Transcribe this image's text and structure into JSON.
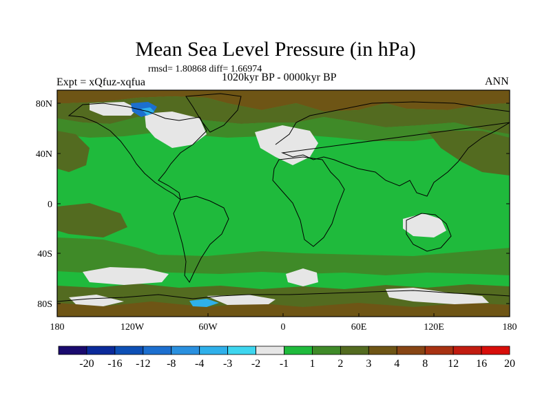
{
  "title": "Mean Sea Level Pressure (in hPa)",
  "stats": "rmsd= 1.80868 diff= 1.66974",
  "experiment": "Expt = xQfuz-xqfua",
  "period": "1020kyr BP - 0000kyr BP",
  "season": "ANN",
  "lat_ticks": [
    {
      "value": 80,
      "label": "80N"
    },
    {
      "value": 40,
      "label": "40N"
    },
    {
      "value": 0,
      "label": "0"
    },
    {
      "value": -40,
      "label": "40S"
    },
    {
      "value": -80,
      "label": "80S"
    }
  ],
  "lon_ticks": [
    {
      "value": -180,
      "label": "180"
    },
    {
      "value": -120,
      "label": "120W"
    },
    {
      "value": -60,
      "label": "60W"
    },
    {
      "value": 0,
      "label": "0"
    },
    {
      "value": 60,
      "label": "60E"
    },
    {
      "value": 120,
      "label": "120E"
    },
    {
      "value": 180,
      "label": "180"
    }
  ],
  "colorbar": {
    "colors": [
      "#1a0a6e",
      "#0b2a9a",
      "#0d4fb5",
      "#1c6fcf",
      "#2a90df",
      "#2fb0ea",
      "#3ed6ef",
      "#e6e6e6",
      "#1fba3c",
      "#3f8a28",
      "#536b20",
      "#6e5515",
      "#874514",
      "#a83212",
      "#c21c10",
      "#d80e0a"
    ],
    "labels": [
      "-20",
      "-16",
      "-12",
      "-8",
      "-4",
      "-3",
      "-2",
      "-1",
      "1",
      "2",
      "3",
      "4",
      "8",
      "12",
      "16",
      "20"
    ]
  },
  "map_colors": {
    "ocean_green": "#1fba3c",
    "dark_green": "#3f8a28",
    "olive": "#536b20",
    "brown": "#6e5515",
    "grey": "#e6e6e6",
    "blue": "#1c6fcf",
    "cyan": "#2fb0ea"
  }
}
